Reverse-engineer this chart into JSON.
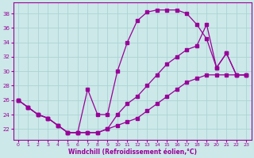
{
  "curve1_x": [
    0,
    1,
    2,
    3,
    4,
    5,
    6,
    7,
    8,
    9,
    10,
    11,
    12,
    13,
    14,
    15,
    16,
    17,
    18,
    19,
    20,
    21,
    22,
    23
  ],
  "curve1_y": [
    26,
    25,
    24,
    23.5,
    22.5,
    21.5,
    21.5,
    27.5,
    24,
    24,
    30,
    34,
    37,
    38.2,
    38.5,
    38.5,
    38.5,
    38,
    36.5,
    34.5,
    30.5,
    32.5,
    29.5,
    29.5
  ],
  "curve2_x": [
    0,
    1,
    2,
    3,
    4,
    5,
    6,
    7,
    8,
    9,
    10,
    11,
    12,
    13,
    14,
    15,
    16,
    17,
    18,
    19,
    20,
    21,
    22,
    23
  ],
  "curve2_y": [
    26,
    25,
    24,
    23.5,
    22.5,
    21.5,
    21.5,
    21.5,
    21.5,
    22,
    24,
    25.5,
    26.5,
    28,
    29.5,
    31,
    32,
    33,
    33.5,
    36.5,
    30.5,
    32.5,
    29.5,
    29.5
  ],
  "curve3_x": [
    0,
    1,
    2,
    3,
    4,
    5,
    6,
    7,
    8,
    9,
    10,
    11,
    12,
    13,
    14,
    15,
    16,
    17,
    18,
    19,
    20,
    21,
    22,
    23
  ],
  "curve3_y": [
    26,
    25,
    24,
    23.5,
    22.5,
    21.5,
    21.5,
    21.5,
    21.5,
    22,
    22.5,
    23,
    23.5,
    24.5,
    25.5,
    26.5,
    27.5,
    28.5,
    29,
    29.5,
    29.5,
    29.5,
    29.5,
    29.5
  ],
  "line_color": "#990099",
  "bg_color": "#cce8e8",
  "grid_color": "#aad4d4",
  "xlabel": "Windchill (Refroidissement éolien,°C)",
  "xlim": [
    -0.5,
    23.5
  ],
  "ylim": [
    20.5,
    39.5
  ],
  "yticks": [
    22,
    24,
    26,
    28,
    30,
    32,
    34,
    36,
    38
  ],
  "xticks": [
    0,
    1,
    2,
    3,
    4,
    5,
    6,
    7,
    8,
    9,
    10,
    11,
    12,
    13,
    14,
    15,
    16,
    17,
    18,
    19,
    20,
    21,
    22,
    23
  ]
}
